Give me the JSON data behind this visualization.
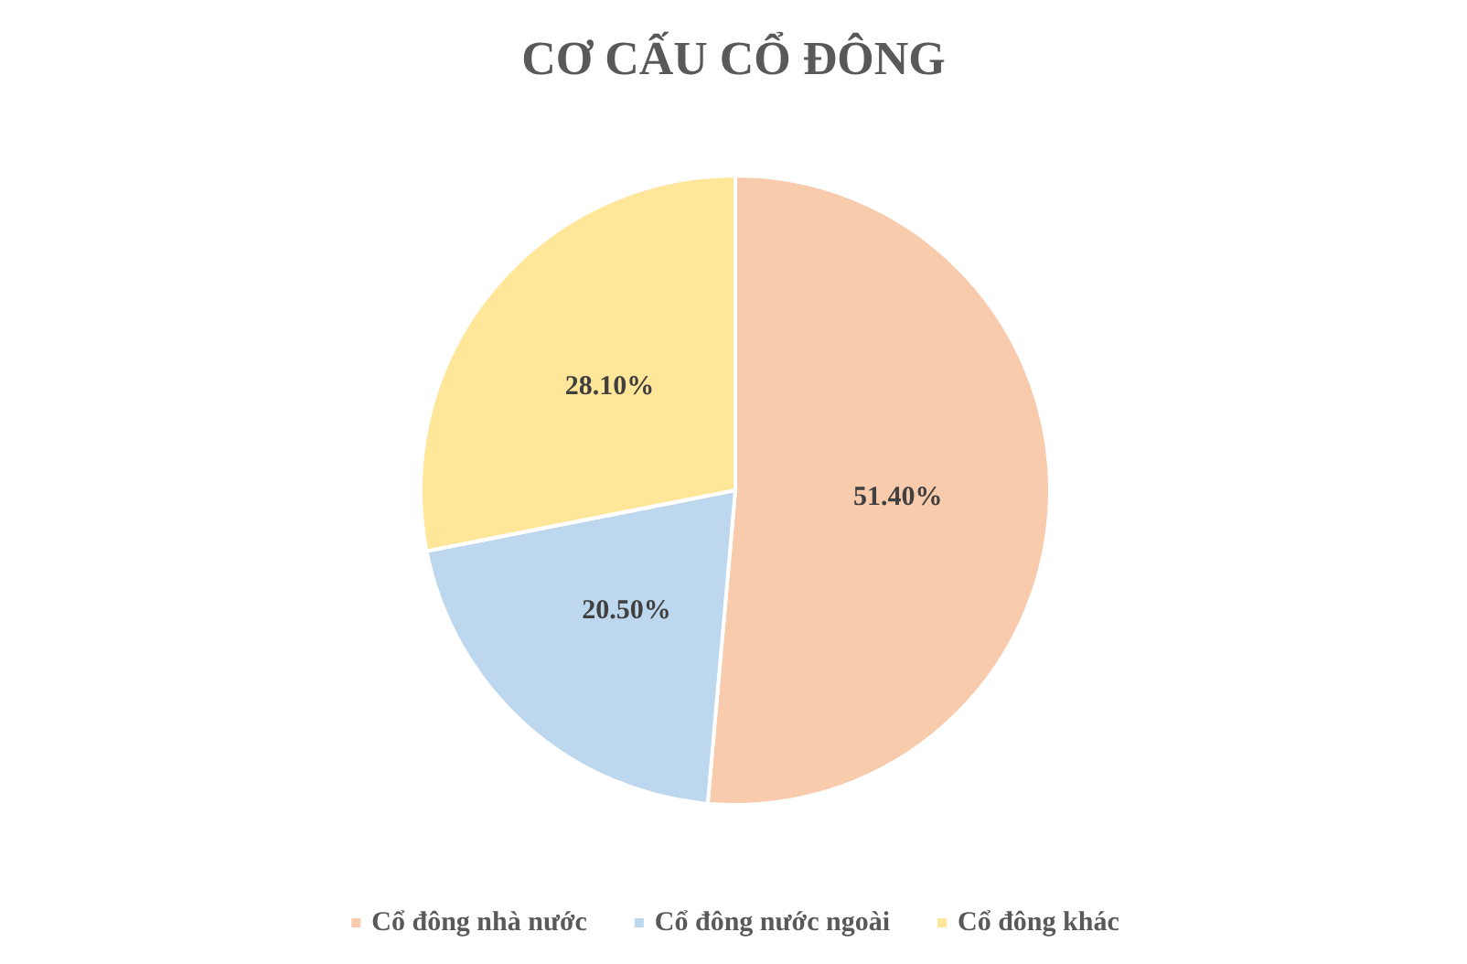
{
  "chart_data": {
    "type": "pie",
    "title": "CƠ CẤU CỔ ĐÔNG",
    "categories": [
      "Cổ đông nhà nước",
      "Cổ đông nước ngoài",
      "Cổ đông khác"
    ],
    "values": [
      51.4,
      20.5,
      28.1
    ],
    "colors": [
      "#f8cbad",
      "#bdd7ee",
      "#ffe699"
    ],
    "value_labels": [
      "51.40%",
      "20.50%",
      "28.10%"
    ],
    "legend": "bottom"
  }
}
